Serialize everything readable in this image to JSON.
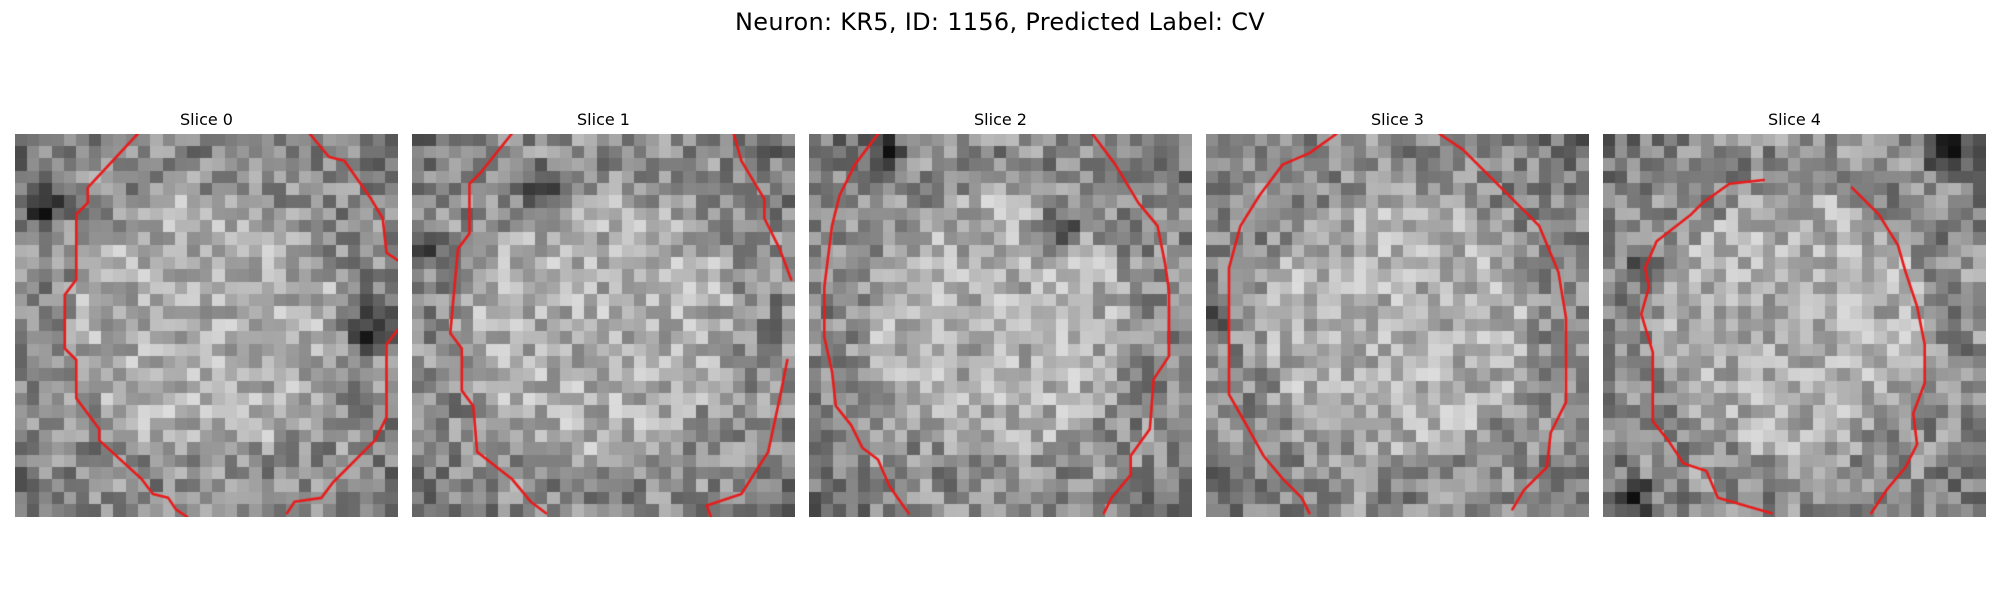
{
  "figure": {
    "title": "Neuron: KR5, ID: 1156, Predicted Label: CV"
  },
  "image_grid": {
    "grid_size": 31,
    "colormap": "grayscale",
    "contour_color": "#e81c1c"
  },
  "slices": [
    {
      "title": "Slice 0",
      "seed": 11,
      "dark_regions": [
        [
          0.93,
          0.5,
          0.1
        ],
        [
          0.08,
          0.2,
          0.08
        ]
      ]
    },
    {
      "title": "Slice 1",
      "seed": 23,
      "dark_regions": [
        [
          0.35,
          0.15,
          0.08
        ],
        [
          0.05,
          0.3,
          0.06
        ]
      ]
    },
    {
      "title": "Slice 2",
      "seed": 37,
      "dark_regions": [
        [
          0.66,
          0.25,
          0.09
        ],
        [
          0.2,
          0.05,
          0.08
        ]
      ]
    },
    {
      "title": "Slice 3",
      "seed": 41,
      "dark_regions": [
        [
          0.02,
          0.48,
          0.05
        ]
      ]
    },
    {
      "title": "Slice 4",
      "seed": 53,
      "dark_regions": [
        [
          0.08,
          0.95,
          0.07
        ],
        [
          0.1,
          0.35,
          0.06
        ],
        [
          0.9,
          0.05,
          0.08
        ]
      ]
    }
  ]
}
